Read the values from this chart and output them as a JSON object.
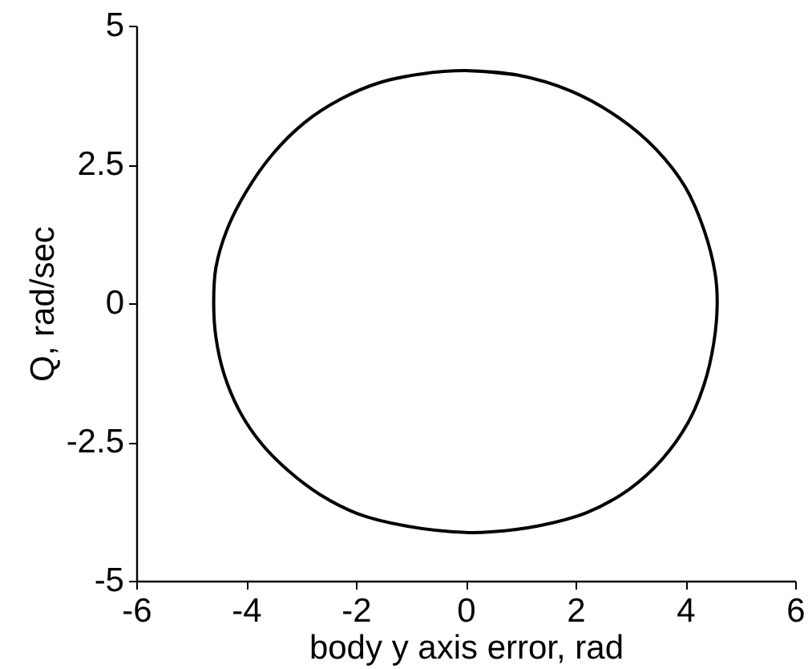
{
  "chart_data": {
    "type": "line",
    "xlabel": "body y axis error, rad",
    "ylabel": "Q, rad/sec",
    "series": [
      {
        "color": "#000000",
        "x": [
          0,
          0.94,
          1.92,
          2.79,
          3.47,
          4.0,
          4.34,
          4.54,
          4.58,
          4.52,
          4.34,
          4.05,
          3.57,
          2.98,
          2.21,
          1.33,
          0.46,
          0,
          -1.1,
          -1.97,
          -2.65,
          -3.24,
          -3.72,
          -4.11,
          -4.4,
          -4.55,
          -4.59,
          -4.55,
          -4.35,
          -4.01,
          -3.53,
          -2.94,
          -2.27,
          -1.58,
          -0.81,
          0,
          0.94
        ],
        "values": [
          4.19,
          4.11,
          3.82,
          3.34,
          2.77,
          2.09,
          1.32,
          0.55,
          0,
          -0.7,
          -1.47,
          -2.15,
          -2.82,
          -3.35,
          -3.77,
          -4.01,
          -4.12,
          -4.13,
          -4.01,
          -3.79,
          -3.45,
          -3.01,
          -2.53,
          -1.96,
          -1.28,
          -0.61,
          0,
          0.64,
          1.32,
          1.99,
          2.67,
          3.25,
          3.68,
          3.97,
          4.13,
          4.19,
          4.11
        ]
      }
    ],
    "xlim": [
      -6,
      6
    ],
    "xticks": [
      -6,
      -4,
      -2,
      0,
      2,
      4,
      6
    ],
    "ylim": [
      -5,
      5
    ],
    "yticks": [
      -5,
      -2.5,
      0,
      2.5,
      5
    ]
  }
}
